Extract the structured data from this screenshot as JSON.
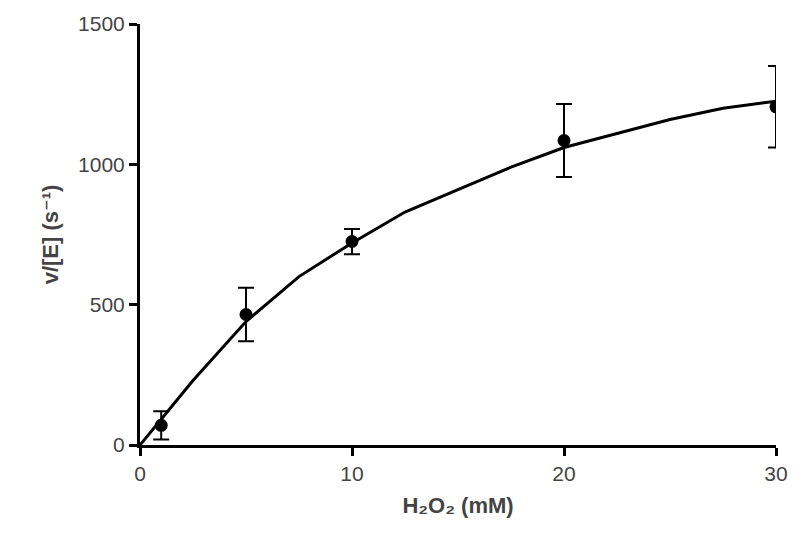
{
  "chart_data": {
    "type": "scatter",
    "x_label": "H₂O₂ (mM)",
    "y_label": "v/[E] (s⁻¹)",
    "xlim": [
      0,
      30
    ],
    "xticks": [
      0,
      10,
      20,
      30
    ],
    "ylim": [
      0,
      1500
    ],
    "yticks": [
      0,
      500,
      1000,
      1500
    ],
    "grid": false,
    "series": [
      {
        "type": "scatter",
        "marker": "circle",
        "color": "#000000",
        "x": [
          1,
          5,
          10,
          20,
          30
        ],
        "values": [
          70,
          465,
          725,
          1085,
          1205
        ],
        "error": [
          50,
          95,
          45,
          130,
          145
        ]
      },
      {
        "type": "line",
        "line_style": "solid",
        "color": "#000000",
        "x": [
          0,
          2.5,
          5,
          7.5,
          10,
          12.5,
          15,
          17.5,
          20,
          22.5,
          25,
          27.5,
          30
        ],
        "values": [
          0,
          230,
          440,
          600,
          720,
          830,
          910,
          990,
          1060,
          1110,
          1160,
          1200,
          1225
        ]
      }
    ]
  }
}
